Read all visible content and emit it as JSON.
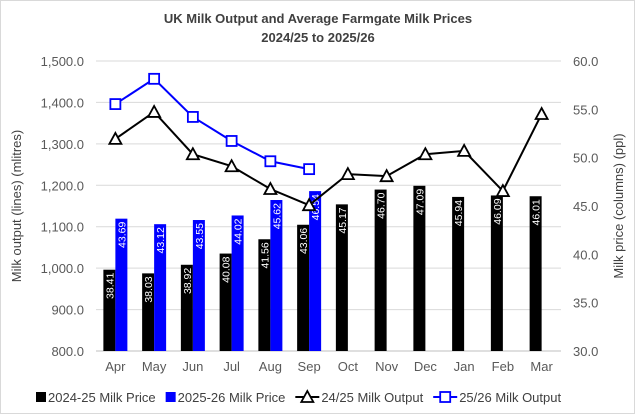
{
  "chart_data": {
    "type": "bar+line",
    "title": "UK Milk Output and Average Farmgate Milk Prices",
    "subtitle": "2024/25 to 2025/26",
    "ylabel": "Milk output (lines) (mlitres)",
    "y2label": "Milk price (columns) (ppl)",
    "ylim": [
      800,
      1500
    ],
    "y2lim": [
      30,
      60
    ],
    "yticks": [
      "800.0",
      "900.0",
      "1,000.0",
      "1,100.0",
      "1,200.0",
      "1,300.0",
      "1,400.0",
      "1,500.0"
    ],
    "y2ticks": [
      "30.0",
      "35.0",
      "40.0",
      "45.0",
      "50.0",
      "55.0",
      "60.0"
    ],
    "grid": true,
    "legend": "bottom",
    "categories": [
      "Apr",
      "May",
      "Jun",
      "Jul",
      "Aug",
      "Sep",
      "Oct",
      "Nov",
      "Dec",
      "Jan",
      "Feb",
      "Mar"
    ],
    "bar_series": [
      {
        "name": "2024-25 Milk Price",
        "color": "#000000",
        "values": [
          38.41,
          38.03,
          38.92,
          40.08,
          41.56,
          43.06,
          45.17,
          46.7,
          47.09,
          45.94,
          46.09,
          46.01
        ],
        "labels": [
          "38.41",
          "38.03",
          "38.92",
          "40.08",
          "41.56",
          "43.06",
          "45.17",
          "46.70",
          "47.09",
          "45.94",
          "46.09",
          "46.01"
        ]
      },
      {
        "name": "2025-26 Milk Price",
        "color": "#0000ff",
        "values": [
          43.69,
          43.12,
          43.55,
          44.02,
          45.62,
          46.54
        ],
        "labels": [
          "43.69",
          "43.12",
          "43.55",
          "44.02",
          "45.62",
          "46.54"
        ]
      }
    ],
    "line_series": [
      {
        "name": "24/25 Milk Output",
        "color": "#000000",
        "marker": "triangle",
        "values": [
          1312,
          1377,
          1275,
          1246,
          1191,
          1152,
          1227,
          1222,
          1275,
          1283,
          1186,
          1372
        ]
      },
      {
        "name": "25/26 Milk Output",
        "color": "#0000ff",
        "marker": "square",
        "values": [
          1396,
          1457,
          1365,
          1307,
          1258,
          1239
        ]
      }
    ]
  }
}
